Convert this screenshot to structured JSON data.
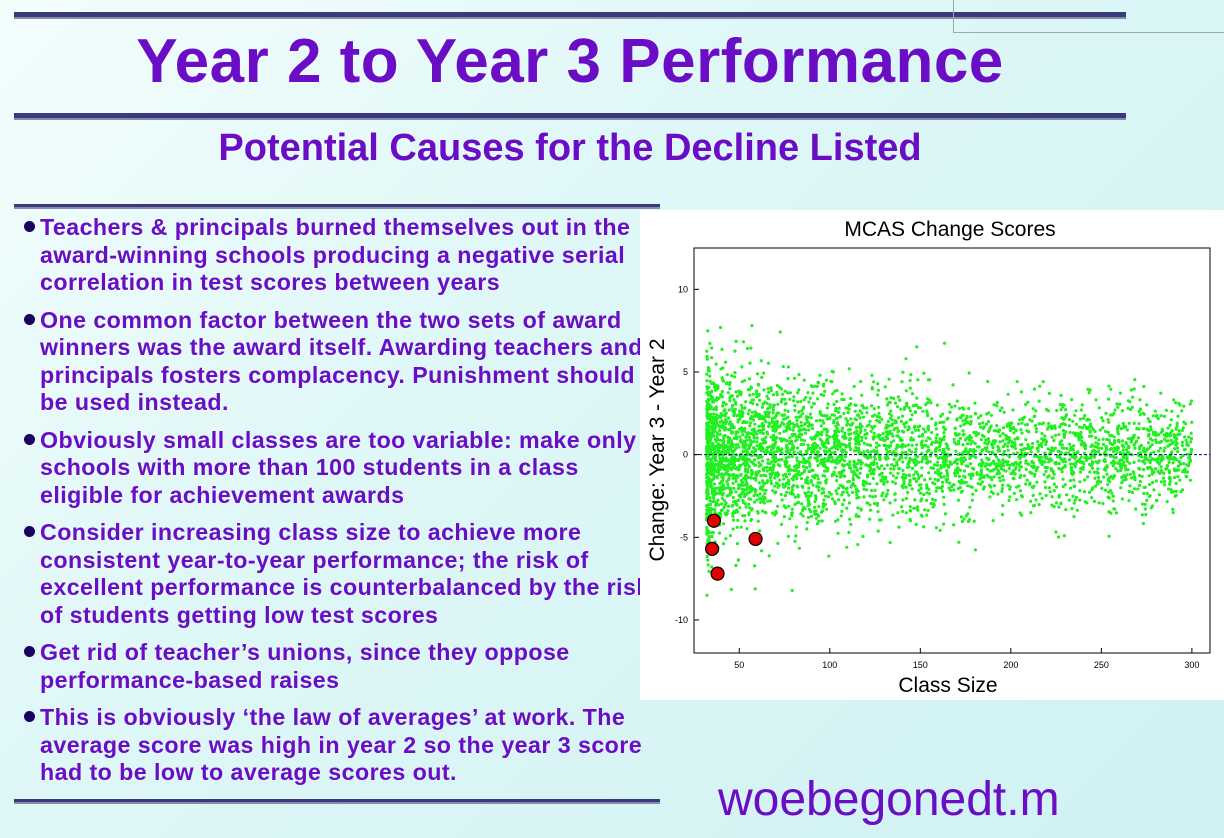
{
  "title": "Year 2 to Year 3 Performance",
  "subtitle": "Potential Causes for the Decline Listed",
  "bullets": [
    "Teachers & principals burned themselves out in the award-winning schools producing a negative serial correlation in test scores between years",
    "One common factor between the two sets of award winners was the award itself.  Awarding teachers and principals fosters complacency. Punishment should be used instead.",
    "Obviously small classes are too variable: make only schools with more than 100 students in a class eligible for achievement awards",
    "Consider increasing class size to achieve more consistent year-to-year performance; the risk of excellent performance is counterbalanced by the risk of students getting low test scores",
    "Get rid of teacher’s unions, since they oppose performance-based raises",
    "This is obviously ‘the law of averages’ at work. The average score was high in year 2 so the year 3 score had to be low to average scores out."
  ],
  "footer_text": "woebegonedt.m",
  "colors": {
    "title": "#6a0dc4",
    "points": "#22ee22",
    "highlight": "#e00000",
    "zero_line": "#000080"
  },
  "chart_data": {
    "type": "scatter",
    "title": "MCAS Change Scores",
    "xlabel": "Class Size",
    "ylabel": "Change: Year 3 - Year 2",
    "xlim": [
      25,
      310
    ],
    "ylim": [
      -12,
      12.5
    ],
    "xticks": [
      50,
      100,
      150,
      200,
      250,
      300
    ],
    "yticks": [
      -10,
      -5,
      0,
      5,
      10
    ],
    "reference_line_y": 0,
    "grid": false,
    "series": [
      {
        "name": "",
        "description": "dense cloud of schools, spread narrowing as class size grows (about 4000 points between class size 32 and 300)",
        "envelope": [
          [
            32,
            8
          ],
          [
            60,
            6
          ],
          [
            100,
            4.5
          ],
          [
            150,
            3.5
          ],
          [
            200,
            3
          ],
          [
            300,
            2.2
          ]
        ]
      },
      {
        "name": "",
        "color": "red",
        "points": [
          [
            36,
            -4
          ],
          [
            35,
            -5.7
          ],
          [
            38,
            -7.2
          ],
          [
            59,
            -5.1
          ]
        ]
      }
    ]
  }
}
